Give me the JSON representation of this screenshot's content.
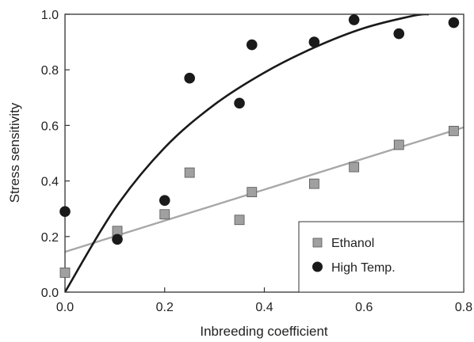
{
  "chart_data": {
    "type": "scatter",
    "title": "",
    "xlabel": "Inbreeding coefficient",
    "ylabel": "Stress sensitivity",
    "xlim": [
      0,
      0.8
    ],
    "ylim": [
      0,
      1.0
    ],
    "xticks": [
      "0.0",
      "0.2",
      "0.4",
      "0.6",
      "0.8"
    ],
    "yticks": [
      "0.0",
      "0.2",
      "0.4",
      "0.6",
      "0.8",
      "1.0"
    ],
    "grid": false,
    "legend_position": "bottom-right",
    "series": [
      {
        "name": "Ethanol",
        "marker": "square",
        "color": "#a0a0a0",
        "x": [
          0.0,
          0.105,
          0.2,
          0.25,
          0.35,
          0.375,
          0.5,
          0.58,
          0.67,
          0.78
        ],
        "y": [
          0.07,
          0.22,
          0.28,
          0.43,
          0.26,
          0.36,
          0.39,
          0.45,
          0.53,
          0.58
        ],
        "fit": {
          "type": "linear",
          "color": "#a8a8a8",
          "intercept": 0.145,
          "slope": 0.56
        }
      },
      {
        "name": "High Temp.",
        "marker": "circle",
        "color": "#1a1a1a",
        "x": [
          0.0,
          0.105,
          0.2,
          0.25,
          0.35,
          0.375,
          0.5,
          0.58,
          0.67,
          0.78
        ],
        "y": [
          0.29,
          0.19,
          0.33,
          0.77,
          0.68,
          0.89,
          0.9,
          0.98,
          0.93,
          0.97
        ],
        "fit": {
          "type": "curve",
          "color": "#1a1a1a",
          "x": [
            0.0,
            0.1,
            0.2,
            0.3,
            0.4,
            0.5,
            0.6,
            0.7,
            0.73
          ],
          "y": [
            0.0,
            0.3,
            0.52,
            0.675,
            0.79,
            0.88,
            0.95,
            0.995,
            1.0
          ]
        }
      }
    ]
  }
}
